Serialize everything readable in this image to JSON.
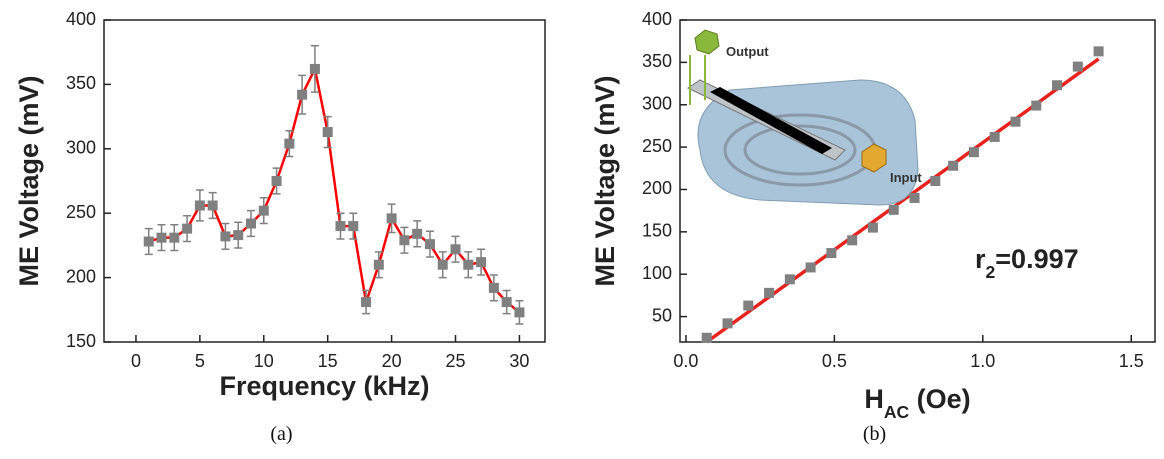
{
  "chart_data": [
    {
      "type": "scatter",
      "x_label": "Frequency (kHz)",
      "y_label": "ME Voltage (mV)",
      "caption": "(a)",
      "xlim": [
        -2.5,
        32
      ],
      "xticks": [
        0,
        5,
        10,
        15,
        20,
        25,
        30
      ],
      "ylim": [
        150,
        400
      ],
      "yticks": [
        150,
        200,
        250,
        300,
        350,
        400
      ],
      "series": [
        {
          "color": "#808080",
          "line_color": "#ff0000",
          "x": [
            1,
            2,
            3,
            4,
            5,
            6,
            7,
            8,
            9,
            10,
            11,
            12,
            13,
            14,
            15,
            16,
            17,
            18,
            19,
            20,
            21,
            22,
            23,
            24,
            25,
            26,
            27,
            28,
            29,
            30
          ],
          "values": [
            228,
            231,
            231,
            238,
            256,
            256,
            232,
            233,
            242,
            252,
            275,
            304,
            342,
            362,
            313,
            240,
            240,
            181,
            210,
            246,
            229,
            234,
            226,
            210,
            222,
            210,
            212,
            192,
            181,
            173
          ],
          "errors": [
            10,
            10,
            10,
            10,
            12,
            10,
            10,
            10,
            10,
            10,
            10,
            10,
            15,
            18,
            12,
            10,
            10,
            9,
            10,
            11,
            10,
            10,
            10,
            10,
            10,
            10,
            10,
            10,
            9,
            9
          ]
        }
      ]
    },
    {
      "type": "scatter",
      "x_label": [
        "H",
        "AC",
        " (Oe)"
      ],
      "y_label": "ME Voltage (mV)",
      "caption": "(b)",
      "annotation": [
        "r",
        "2",
        "=0.997"
      ],
      "inset": {
        "labels": [
          "Output",
          "Input"
        ]
      },
      "xlim": [
        -0.02,
        1.58
      ],
      "xticks": [
        {
          "value": 0,
          "label": "0.0"
        },
        0.5,
        {
          "value": 1,
          "label": "1.0"
        },
        1.5
      ],
      "ylim": [
        20,
        400
      ],
      "yticks": [
        50,
        100,
        150,
        200,
        250,
        300,
        350,
        400
      ],
      "series": [
        {
          "color": "#808080",
          "x": [
            0.07,
            0.14,
            0.21,
            0.28,
            0.35,
            0.42,
            0.49,
            0.56,
            0.63,
            0.7,
            0.77,
            0.84,
            0.9,
            0.97,
            1.04,
            1.11,
            1.18,
            1.25,
            1.32,
            1.39
          ],
          "values": [
            25,
            42,
            63,
            78,
            94,
            108,
            125,
            140,
            155,
            176,
            190,
            210,
            228,
            244,
            262,
            280,
            299,
            323,
            345,
            363
          ]
        }
      ],
      "fit": {
        "color": "#e8221c",
        "x": [
          0.07,
          1.39
        ],
        "values": [
          20,
          354
        ]
      }
    }
  ]
}
